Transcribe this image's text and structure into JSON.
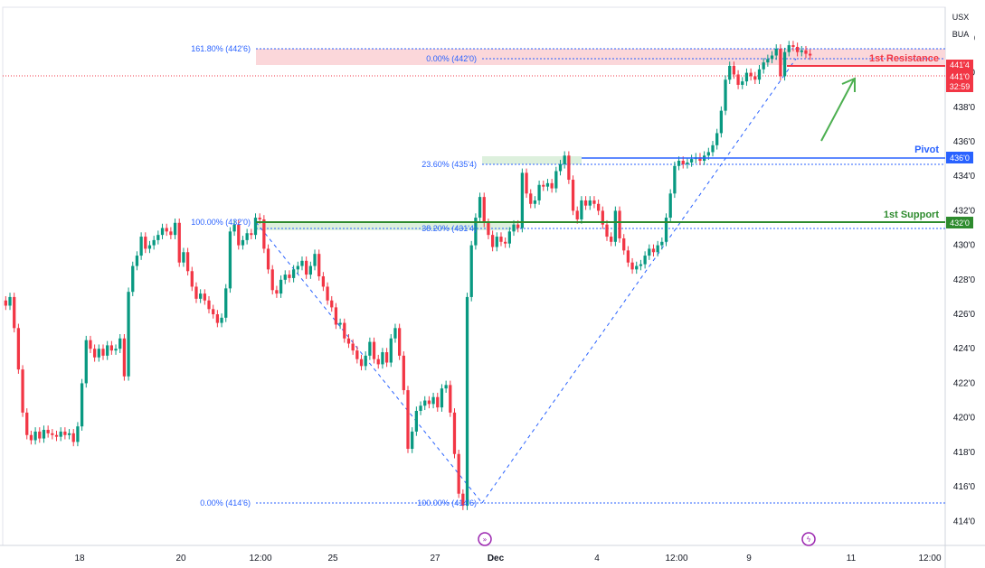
{
  "unit_top": "USX",
  "unit_bottom": "BUA",
  "price_tag_top": "441'4",
  "price_tag_mid": "441'0",
  "price_tag_timer": "32:59",
  "colors": {
    "up": "#089981",
    "down": "#f23645",
    "pivot": "#2962ff",
    "support": "#2e8b2e",
    "resistance": "#f23645",
    "fib": "#2962ff",
    "arrow": "#4caf50"
  },
  "chart_data": {
    "type": "candlestick",
    "title": "",
    "xlabel": "",
    "ylabel": "",
    "x_ticks": [
      "18",
      "20",
      "12:00",
      "25",
      "27",
      "Dec",
      "4",
      "12:00",
      "9",
      "11",
      "12:00"
    ],
    "y_ticks": [
      "414'0",
      "416'0",
      "418'0",
      "420'0",
      "422'0",
      "424'0",
      "426'0",
      "428'0",
      "430'0",
      "432'0",
      "434'0",
      "436'0",
      "438'0",
      "440'0",
      "442'0"
    ],
    "ylim": [
      412.6,
      443.8
    ],
    "levels": [
      {
        "name": "1st Resistance",
        "price": 441.5,
        "label": "1st Resistance",
        "tag": "441'4"
      },
      {
        "name": "Pivot",
        "price": 436.0,
        "label": "Pivot",
        "tag": "436'0"
      },
      {
        "name": "1st Support",
        "price": 432.0,
        "label": "1st Support",
        "tag": "432'0"
      }
    ],
    "fib_levels": [
      {
        "label": "161.80% (442'6)",
        "price": 442.75
      },
      {
        "label": "0.00% (442'0)",
        "price": 442.0
      },
      {
        "label": "23.60% (435'4)",
        "price": 435.5
      },
      {
        "label": "100.00% (432'0)",
        "price": 432.0
      },
      {
        "label": "38.20% (431'4)",
        "price": 431.5
      },
      {
        "label": "0.00% (414'6)",
        "price": 414.75
      },
      {
        "label": "100.00% (414'6)",
        "price": 414.75
      }
    ],
    "series": [
      {
        "values": [
          426.5,
          427.0,
          425.2,
          422.8,
          420.3,
          419.0,
          418.7,
          419.2,
          418.8,
          419.3,
          419.1,
          419.0,
          418.9,
          419.2,
          419.0,
          419.1,
          418.6,
          419.5,
          422.0,
          424.5,
          424.0,
          423.5,
          424.0,
          423.6,
          424.2,
          423.9,
          424.0,
          424.6,
          422.4,
          427.3,
          428.8,
          429.4,
          430.5,
          429.8,
          430.0,
          430.3,
          430.6,
          431.0,
          430.8,
          430.6,
          431.3,
          429.0,
          429.6,
          428.5,
          427.6,
          426.9,
          427.2,
          426.8,
          426.3,
          426.0,
          425.5,
          425.8,
          427.5,
          430.8,
          431.2,
          430.0,
          430.3,
          430.7,
          430.6,
          431.6,
          431.5,
          429.8,
          428.6,
          427.4,
          427.2,
          428.0,
          428.3,
          428.1,
          428.6,
          428.8,
          429.1,
          428.3,
          428.8,
          429.5,
          428.2,
          427.6,
          426.8,
          426.4,
          425.4,
          425.5,
          424.6,
          424.3,
          423.9,
          423.4,
          423.0,
          423.6,
          424.4,
          423.4,
          423.1,
          423.8,
          423.2,
          424.6,
          425.2,
          423.6,
          421.6,
          418.2,
          419.2,
          420.4,
          420.7,
          421.0,
          420.8,
          421.2,
          420.6,
          421.7,
          421.9,
          420.3,
          417.9,
          415.6,
          414.9,
          427.0,
          430.0,
          431.6,
          432.8,
          431.3,
          430.6,
          429.9,
          430.5,
          430.2,
          430.1,
          430.8,
          431.2,
          431.0,
          434.2,
          433.0,
          432.4,
          432.6,
          433.5,
          433.4,
          433.6,
          433.3,
          434.3,
          434.7,
          435.2,
          433.8,
          432.0,
          431.5,
          432.6,
          432.3,
          432.6,
          432.4,
          432.0,
          431.2,
          430.5,
          430.2,
          432.0,
          430.4,
          429.7,
          429.0,
          428.6,
          428.8,
          428.9,
          429.4,
          429.8,
          429.6,
          430.0,
          430.2,
          431.6,
          433.0,
          434.6,
          434.9,
          434.7,
          434.8,
          435.0,
          435.1,
          434.9,
          435.2,
          435.4,
          435.8,
          436.5,
          437.8,
          439.6,
          440.4,
          439.9,
          439.3,
          439.5,
          440.0,
          439.8,
          439.6,
          440.2,
          440.6,
          440.8,
          441.0,
          441.4,
          439.8,
          441.2,
          441.6,
          441.5,
          441.2,
          441.3,
          441.1,
          441.0
        ]
      }
    ]
  }
}
